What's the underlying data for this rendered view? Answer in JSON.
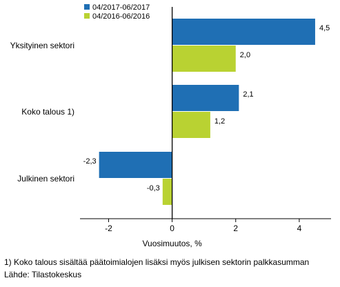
{
  "chart_data": {
    "type": "bar",
    "orientation": "horizontal",
    "categories": [
      "Yksityinen sektori",
      "Koko talous 1)",
      "Julkinen sektori"
    ],
    "series": [
      {
        "name": "04/2017-06/2017",
        "values": [
          4.5,
          2.1,
          -2.3
        ],
        "labels": [
          "4,5",
          "2,1",
          "-2,3"
        ],
        "color": "#1f6fb4"
      },
      {
        "name": "04/2016-06/2016",
        "values": [
          2.0,
          1.2,
          -0.3
        ],
        "labels": [
          "2,0",
          "1,2",
          "-0,3"
        ],
        "color": "#b9d232"
      }
    ],
    "xlabel": "Vuosimuutos, %",
    "xlim": [
      -2.9,
      5.0
    ],
    "xticks": [
      -2,
      0,
      2,
      4
    ],
    "xtick_labels": [
      "-2",
      "0",
      "2",
      "4"
    ],
    "legend_position": "top-left",
    "grid": false
  },
  "footnote": "1) Koko talous sisältää päätoimialojen lisäksi myös julkisen sektorin palkkasumman",
  "source": "Lähde: Tilastokeskus"
}
